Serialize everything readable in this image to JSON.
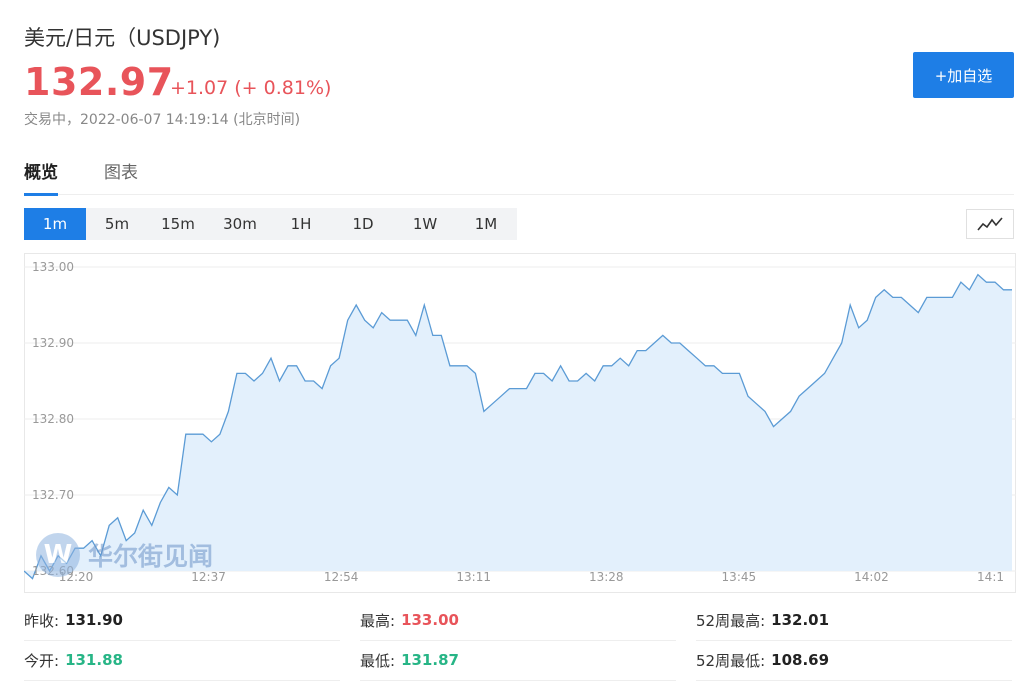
{
  "header": {
    "title": "美元/日元（USDJPY)",
    "price": "132.97",
    "change": "+1.07 (+ 0.81%)",
    "status": "交易中，2022-06-07 14:19:14 (北京时间)",
    "add_button": "+加自选"
  },
  "tabs": [
    {
      "label": "概览",
      "active": true
    },
    {
      "label": "图表",
      "active": false
    }
  ],
  "periods": [
    {
      "label": "1m",
      "active": true
    },
    {
      "label": "5m",
      "active": false
    },
    {
      "label": "15m",
      "active": false
    },
    {
      "label": "30m",
      "active": false
    },
    {
      "label": "1H",
      "active": false
    },
    {
      "label": "1D",
      "active": false
    },
    {
      "label": "1W",
      "active": false
    },
    {
      "label": "1M",
      "active": false
    }
  ],
  "chart_type_icon": "line-chart-icon",
  "watermark": {
    "logo_text": "W",
    "text": "华尔街见闻"
  },
  "chart_data": {
    "type": "area",
    "x_labels": [
      "12:20",
      "12:37",
      "12:54",
      "13:11",
      "13:28",
      "13:45",
      "14:02",
      "14:1"
    ],
    "y_ticks": [
      "133.00",
      "132.90",
      "132.80",
      "132.70",
      "132.60"
    ],
    "ylim": [
      132.6,
      133.0
    ],
    "line_color": "#5b9bd5",
    "fill_color": "#e3f0fc",
    "values": [
      132.6,
      132.59,
      132.62,
      132.6,
      132.62,
      132.61,
      132.63,
      132.63,
      132.64,
      132.62,
      132.66,
      132.67,
      132.64,
      132.65,
      132.68,
      132.66,
      132.69,
      132.71,
      132.7,
      132.78,
      132.78,
      132.78,
      132.77,
      132.78,
      132.81,
      132.86,
      132.86,
      132.85,
      132.86,
      132.88,
      132.85,
      132.87,
      132.87,
      132.85,
      132.85,
      132.84,
      132.87,
      132.88,
      132.93,
      132.95,
      132.93,
      132.92,
      132.94,
      132.93,
      132.93,
      132.93,
      132.91,
      132.95,
      132.91,
      132.91,
      132.87,
      132.87,
      132.87,
      132.86,
      132.81,
      132.82,
      132.83,
      132.84,
      132.84,
      132.84,
      132.86,
      132.86,
      132.85,
      132.87,
      132.85,
      132.85,
      132.86,
      132.85,
      132.87,
      132.87,
      132.88,
      132.87,
      132.89,
      132.89,
      132.9,
      132.91,
      132.9,
      132.9,
      132.89,
      132.88,
      132.87,
      132.87,
      132.86,
      132.86,
      132.86,
      132.83,
      132.82,
      132.81,
      132.79,
      132.8,
      132.81,
      132.83,
      132.84,
      132.85,
      132.86,
      132.88,
      132.9,
      132.95,
      132.92,
      132.93,
      132.96,
      132.97,
      132.96,
      132.96,
      132.95,
      132.94,
      132.96,
      132.96,
      132.96,
      132.96,
      132.98,
      132.97,
      132.99,
      132.98,
      132.98,
      132.97,
      132.97
    ]
  },
  "stats": {
    "row1": [
      {
        "label": "昨收:",
        "value": "131.90",
        "color": "#222222"
      },
      {
        "label": "最高:",
        "value": "133.00",
        "color": "#e8545a"
      },
      {
        "label": "52周最高:",
        "value": "132.01",
        "color": "#222222"
      }
    ],
    "row2": [
      {
        "label": "今开:",
        "value": "131.88",
        "color": "#27b586"
      },
      {
        "label": "最低:",
        "value": "131.87",
        "color": "#27b586"
      },
      {
        "label": "52周最低:",
        "value": "108.69",
        "color": "#222222"
      }
    ]
  }
}
